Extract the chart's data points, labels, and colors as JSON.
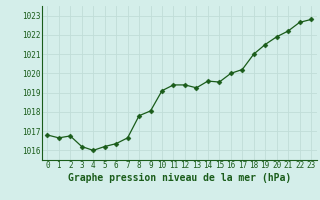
{
  "x": [
    0,
    1,
    2,
    3,
    4,
    5,
    6,
    7,
    8,
    9,
    10,
    11,
    12,
    13,
    14,
    15,
    16,
    17,
    18,
    19,
    20,
    21,
    22,
    23
  ],
  "y": [
    1016.8,
    1016.65,
    1016.75,
    1016.2,
    1016.0,
    1016.2,
    1016.35,
    1016.65,
    1017.8,
    1018.05,
    1019.1,
    1019.4,
    1019.4,
    1019.25,
    1019.6,
    1019.55,
    1020.0,
    1020.2,
    1021.0,
    1021.5,
    1021.9,
    1022.2,
    1022.65,
    1022.8
  ],
  "line_color": "#1a5c1a",
  "marker_color": "#1a5c1a",
  "bg_color": "#d4eeea",
  "grid_color": "#c0ddd8",
  "xlabel": "Graphe pression niveau de la mer (hPa)",
  "xlabel_color": "#1a5c1a",
  "ylim_min": 1015.5,
  "ylim_max": 1023.5,
  "xlim_min": -0.5,
  "xlim_max": 23.5,
  "yticks": [
    1016,
    1017,
    1018,
    1019,
    1020,
    1021,
    1022,
    1023
  ],
  "xticks": [
    0,
    1,
    2,
    3,
    4,
    5,
    6,
    7,
    8,
    9,
    10,
    11,
    12,
    13,
    14,
    15,
    16,
    17,
    18,
    19,
    20,
    21,
    22,
    23
  ],
  "tick_fontsize": 5.5,
  "xlabel_fontsize": 7.0
}
